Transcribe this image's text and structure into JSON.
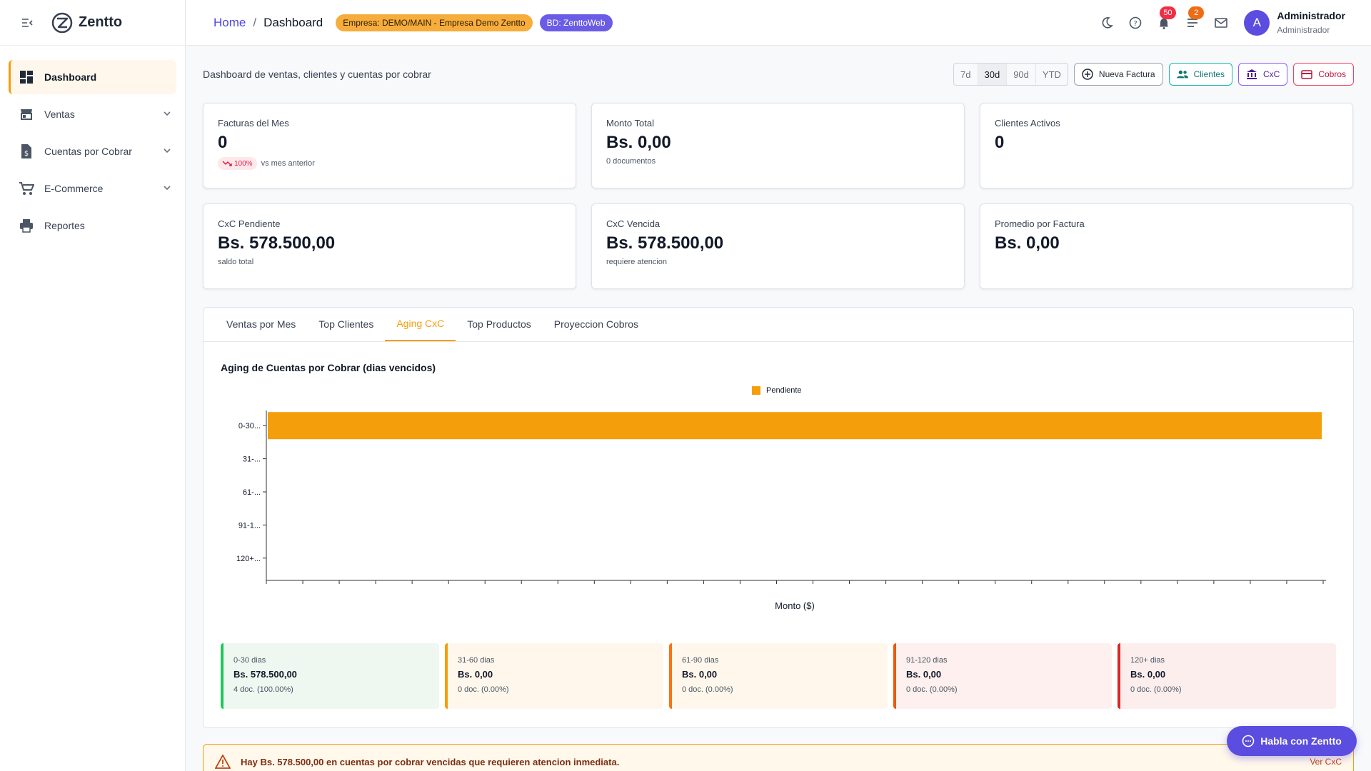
{
  "app": {
    "name": "Zentto"
  },
  "sidebar": {
    "items": [
      {
        "label": "Dashboard",
        "icon": "dashboard-icon",
        "active": true
      },
      {
        "label": "Ventas",
        "icon": "store-icon"
      },
      {
        "label": "Cuentas por Cobrar",
        "icon": "invoice-dollar-icon"
      },
      {
        "label": "E-Commerce",
        "icon": "cart-icon"
      },
      {
        "label": "Reportes",
        "icon": "printer-icon"
      }
    ]
  },
  "header": {
    "breadcrumb": {
      "home": "Home",
      "sep": "/",
      "current": "Dashboard"
    },
    "company_chip": "Empresa: DEMO/MAIN - Empresa Demo Zentto",
    "db_chip": "BD: ZenttoWeb",
    "notifications_count": "50",
    "tasks_count": "2",
    "user": {
      "initial": "A",
      "name": "Administrador",
      "role": "Administrador"
    }
  },
  "toolbar": {
    "subtitle": "Dashboard de ventas, clientes y cuentas por cobrar",
    "ranges": [
      "7d",
      "30d",
      "90d",
      "YTD"
    ],
    "selected_range": "30d",
    "buttons": {
      "new_invoice": "Nueva Factura",
      "clients": "Clientes",
      "cxc": "CxC",
      "payments": "Cobros"
    }
  },
  "cards": [
    {
      "label": "Facturas del Mes",
      "value": "0",
      "trend": "100%",
      "sub": "vs mes anterior"
    },
    {
      "label": "Monto Total",
      "value": "Bs. 0,00",
      "sub": "0 documentos"
    },
    {
      "label": "Clientes Activos",
      "value": "0",
      "sub": ""
    },
    {
      "label": "CxC Pendiente",
      "value": "Bs. 578.500,00",
      "sub": "saldo total"
    },
    {
      "label": "CxC Vencida",
      "value": "Bs. 578.500,00",
      "sub": "requiere atencion"
    },
    {
      "label": "Promedio por Factura",
      "value": "Bs. 0,00",
      "sub": ""
    }
  ],
  "tabs": [
    "Ventas por Mes",
    "Top Clientes",
    "Aging CxC",
    "Top Productos",
    "Proyeccion Cobros"
  ],
  "active_tab": "Aging CxC",
  "chart_data": {
    "type": "bar",
    "orientation": "horizontal",
    "title": "Aging de Cuentas por Cobrar (dias vencidos)",
    "xlabel": "Monto ($)",
    "ylabel": "",
    "categories": [
      "0-30...",
      "31-...",
      "61-...",
      "91-1...",
      "120+..."
    ],
    "series": [
      {
        "name": "Pendiente",
        "values": [
          578500,
          0,
          0,
          0,
          0
        ],
        "color": "#f59e0b"
      }
    ],
    "xlim": [
      0,
      578500
    ],
    "legend": "top-center",
    "grid": false
  },
  "buckets": [
    {
      "label": "0-30 dias",
      "amount": "Bs. 578.500,00",
      "docs": "4 doc. (100.00%)",
      "color": "#22c55e",
      "bg": "#eff7f1"
    },
    {
      "label": "31-60 dias",
      "amount": "Bs. 0,00",
      "docs": "0 doc. (0.00%)",
      "color": "#f59e0b",
      "bg": "#fff7ec"
    },
    {
      "label": "61-90 dias",
      "amount": "Bs. 0,00",
      "docs": "0 doc. (0.00%)",
      "color": "#f97316",
      "bg": "#fff7ec"
    },
    {
      "label": "91-120 dias",
      "amount": "Bs. 0,00",
      "docs": "0 doc. (0.00%)",
      "color": "#ea580c",
      "bg": "#fdf0ee"
    },
    {
      "label": "120+ dias",
      "amount": "Bs. 0,00",
      "docs": "0 doc. (0.00%)",
      "color": "#dc2626",
      "bg": "#fdeeee"
    }
  ],
  "alert": {
    "text": "Hay Bs. 578.500,00 en cuentas por cobrar vencidas que requieren atencion inmediata.",
    "link": "Ver CxC"
  },
  "chat_button": "Habla con Zentto"
}
